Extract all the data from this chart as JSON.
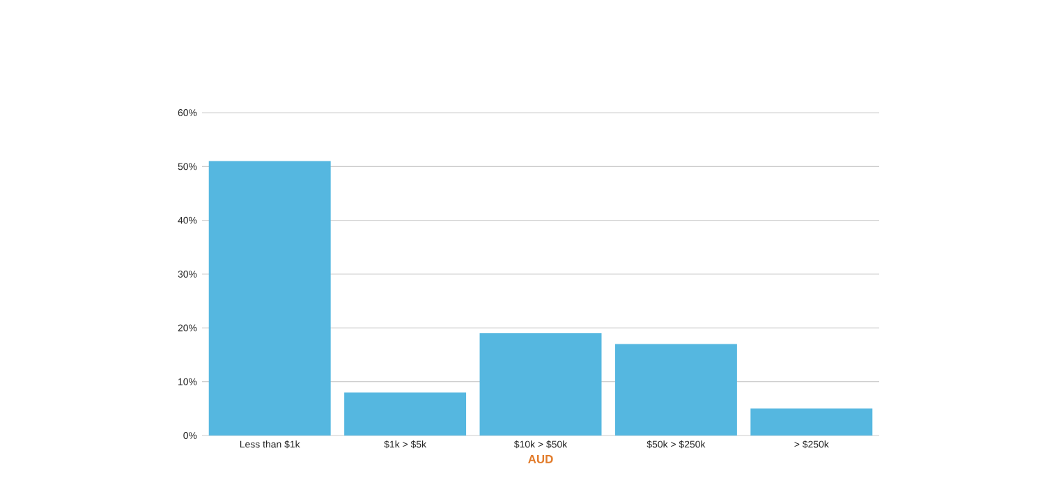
{
  "chart_data": {
    "type": "bar",
    "xlabel": "AUD",
    "categories": [
      "Less than $1k",
      "$1k > $5k",
      "$10k > $50k",
      "$50k > $250k",
      "> $250k"
    ],
    "values": [
      51,
      8,
      19,
      17,
      5
    ],
    "color": "#55b7e0",
    "ylim": [
      0,
      60
    ],
    "yticks": [
      {
        "value": 0,
        "label": "0%"
      },
      {
        "value": 10,
        "label": "10%"
      },
      {
        "value": 20,
        "label": "20%"
      },
      {
        "value": 30,
        "label": "30%"
      },
      {
        "value": 40,
        "label": "40%"
      },
      {
        "value": 50,
        "label": "50%"
      },
      {
        "value": 60,
        "label": "60%"
      }
    ],
    "grid": "y"
  }
}
